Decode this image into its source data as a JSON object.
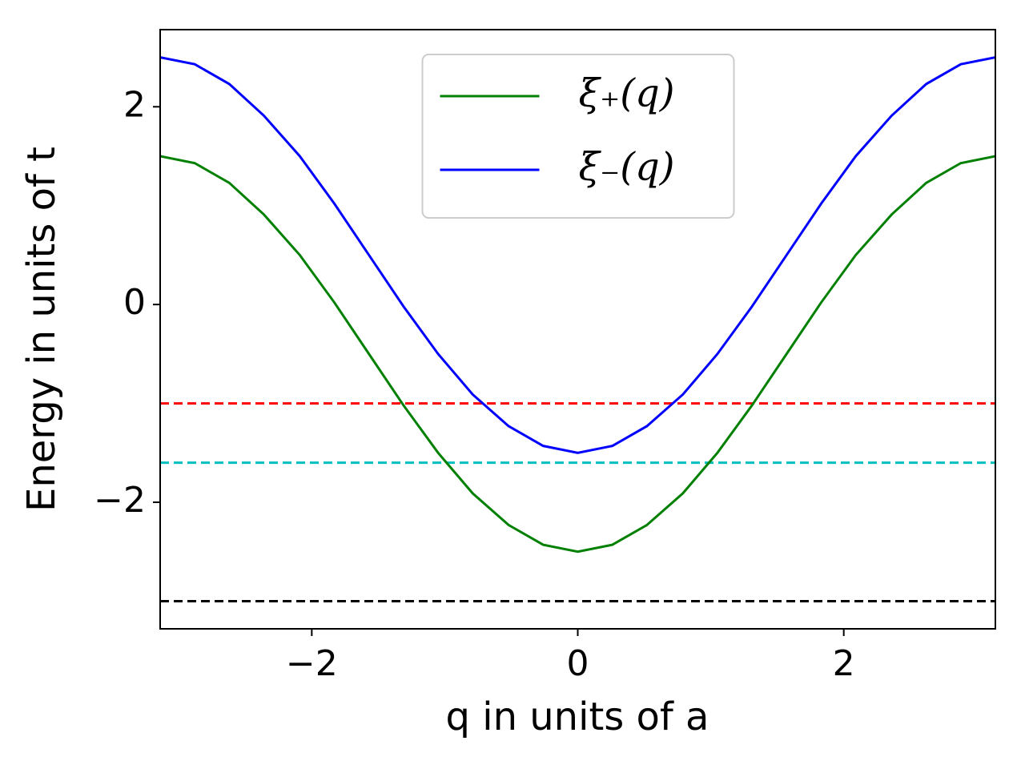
{
  "chart_data": {
    "type": "line",
    "x_label": "q in units of a",
    "y_label": "Energy in units of t",
    "x": [
      -3.14,
      -2.88,
      -2.62,
      -2.36,
      -2.09,
      -1.83,
      -1.57,
      -1.31,
      -1.05,
      -0.79,
      -0.52,
      -0.26,
      0,
      0.26,
      0.52,
      0.79,
      1.05,
      1.31,
      1.57,
      1.83,
      2.09,
      2.36,
      2.62,
      2.88,
      3.14
    ],
    "series": [
      {
        "name": "ξ₊(q)",
        "color": "#008000",
        "values": [
          1.5,
          1.43,
          1.23,
          0.91,
          0.5,
          0.02,
          -0.5,
          -1.02,
          -1.5,
          -1.91,
          -2.23,
          -2.43,
          -2.5,
          -2.43,
          -2.23,
          -1.91,
          -1.5,
          -1.02,
          -0.5,
          0.02,
          0.5,
          0.91,
          1.23,
          1.43,
          1.5
        ]
      },
      {
        "name": "ξ₋(q)",
        "color": "#0000ff",
        "values": [
          2.5,
          2.43,
          2.23,
          1.91,
          1.5,
          1.02,
          0.5,
          -0.02,
          -0.5,
          -0.91,
          -1.23,
          -1.43,
          -1.5,
          -1.43,
          -1.23,
          -0.91,
          -0.5,
          -0.02,
          0.5,
          1.02,
          1.5,
          1.91,
          2.23,
          2.43,
          2.5
        ]
      }
    ],
    "hlines": [
      {
        "y": -1,
        "color": "#ff0000"
      },
      {
        "y": -1.6,
        "color": "#00bfbf"
      },
      {
        "y": -3,
        "color": "#000000"
      }
    ],
    "xlim": [
      -3.14,
      3.14
    ],
    "ylim": [
      -3.28,
      2.78
    ],
    "xticks": [
      {
        "value": -2,
        "label": "−2"
      },
      0,
      2
    ],
    "yticks": [
      {
        "value": -2,
        "label": "−2"
      },
      0,
      2
    ],
    "legend": "upper center"
  }
}
